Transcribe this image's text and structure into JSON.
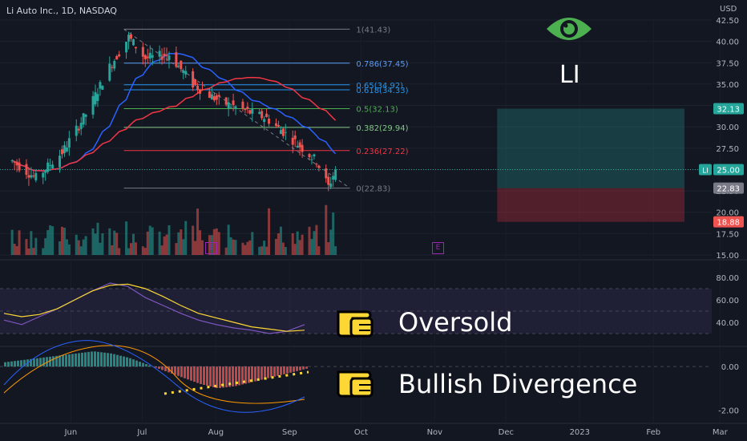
{
  "header": {
    "title": "Li Auto Inc., 1D, NASDAQ",
    "currency": "USD"
  },
  "overlay": {
    "ticker": "LI",
    "eye_icon": "eye-icon",
    "notes": [
      {
        "text": "Oversold",
        "icon": "pointing-hand-icon"
      },
      {
        "text": "Bullish Divergence",
        "icon": "pointing-hand-icon"
      }
    ],
    "earnings_markers": [
      "E",
      "E"
    ]
  },
  "colors": {
    "background": "#131722",
    "up": "#26a69a",
    "down": "#ef5350",
    "ma_fast": "#2962ff",
    "ma_slow": "#f23645",
    "rsi": "#7e57c2",
    "rsi_ma": "#fdd835",
    "highlight": "#fdd835"
  },
  "chart_data": [
    {
      "type": "candlestick",
      "panel": "price",
      "y_unit": "USD",
      "ylim": [
        15.0,
        42.5
      ],
      "y_ticks": [
        "42.50",
        "40.00",
        "37.50",
        "35.00",
        "32.50",
        "30.00",
        "27.50",
        "25.00",
        "22.50",
        "20.00",
        "17.50",
        "15.00"
      ],
      "x_ticks": [
        "Jun",
        "Jul",
        "Aug",
        "Sep",
        "Oct",
        "Nov",
        "Dec",
        "2023",
        "Feb",
        "Mar"
      ],
      "approx_close_path": [
        {
          "date": "2022-05-10",
          "close": 26.0
        },
        {
          "date": "2022-05-20",
          "close": 24.0
        },
        {
          "date": "2022-05-31",
          "close": 27.0
        },
        {
          "date": "2022-06-10",
          "close": 31.5
        },
        {
          "date": "2022-06-20",
          "close": 37.0
        },
        {
          "date": "2022-06-28",
          "close": 40.5
        },
        {
          "date": "2022-07-05",
          "close": 38.0
        },
        {
          "date": "2022-07-15",
          "close": 38.5
        },
        {
          "date": "2022-07-25",
          "close": 35.0
        },
        {
          "date": "2022-08-05",
          "close": 33.0
        },
        {
          "date": "2022-08-15",
          "close": 32.0
        },
        {
          "date": "2022-08-25",
          "close": 31.0
        },
        {
          "date": "2022-09-05",
          "close": 28.5
        },
        {
          "date": "2022-09-15",
          "close": 26.0
        },
        {
          "date": "2022-09-20",
          "close": 23.0
        },
        {
          "date": "2022-09-23",
          "close": 25.0
        }
      ],
      "last_price": "25.00",
      "price_labels": [
        {
          "text": "32.13",
          "kind": "target"
        },
        {
          "text": "25.00",
          "kind": "last"
        },
        {
          "text": "22.83",
          "kind": "fib-0"
        },
        {
          "text": "18.88",
          "kind": "stop"
        }
      ],
      "fibonacci": [
        {
          "level": "1",
          "value": 41.43,
          "label": "1(41.43)"
        },
        {
          "level": "0.786",
          "value": 37.45,
          "label": "0.786(37.45)"
        },
        {
          "level": "0.65",
          "value": 34.92,
          "label": "0.65(34.92)"
        },
        {
          "level": "0.618",
          "value": 34.33,
          "label": "0.618(34.33)"
        },
        {
          "level": "0.5",
          "value": 32.13,
          "label": "0.5(32.13)"
        },
        {
          "level": "0.382",
          "value": 29.94,
          "label": "0.382(29.94)"
        },
        {
          "level": "0.236",
          "value": 27.22,
          "label": "0.236(27.22)"
        },
        {
          "level": "0",
          "value": 22.83,
          "label": "0(22.83)"
        }
      ],
      "position": {
        "target": 32.13,
        "entry": 22.83,
        "stop": 18.88
      }
    },
    {
      "type": "line",
      "panel": "rsi",
      "ylim": [
        20,
        90
      ],
      "y_ticks": [
        "80.00",
        "60.00",
        "40.00"
      ],
      "series": [
        {
          "name": "",
          "values": [
            42,
            38,
            45,
            52,
            60,
            68,
            75,
            72,
            62,
            55,
            48,
            42,
            38,
            35,
            33,
            30,
            32,
            38
          ]
        },
        {
          "name": "",
          "values": [
            48,
            45,
            47,
            52,
            60,
            68,
            73,
            74,
            70,
            63,
            55,
            48,
            44,
            40,
            36,
            34,
            32,
            33
          ]
        }
      ]
    },
    {
      "type": "bar",
      "panel": "macd",
      "ylim": [
        -2.5,
        1.0
      ],
      "y_ticks": [
        "0.00",
        "-2.00"
      ],
      "histogram": [
        0.2,
        0.3,
        0.4,
        0.5,
        0.6,
        0.7,
        0.6,
        0.4,
        0.1,
        -0.2,
        -0.5,
        -0.8,
        -1.0,
        -0.9,
        -0.7,
        -0.5,
        -0.3,
        -0.1
      ]
    }
  ]
}
